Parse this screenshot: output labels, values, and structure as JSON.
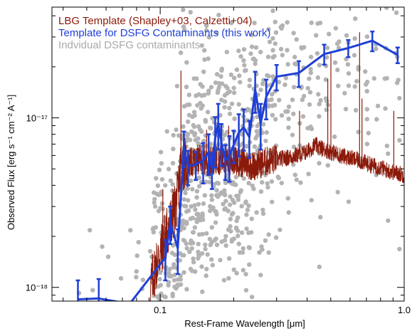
{
  "chart_data": {
    "type": "line",
    "xscale": "log",
    "yscale": "log",
    "xlim": [
      0.036,
      1.0
    ],
    "ylim": [
      8.3e-19,
      4.5e-17
    ],
    "xlabel": "Rest-Frame Wavelength [μm]",
    "ylabel": "Observed Flux [erg s⁻¹ cm⁻² A⁻¹]",
    "xticks": [
      {
        "value": 0.1,
        "label": "0.1"
      },
      {
        "value": 1.0,
        "label": "1.0"
      }
    ],
    "yticks": [
      {
        "value": 1e-18,
        "label": "10⁻¹⁸"
      },
      {
        "value": 1e-17,
        "label": "10⁻¹⁷"
      }
    ],
    "legend_position": "top-left",
    "legend": [
      {
        "label": "LBG Template (Shapley+03, Calzetti+04)",
        "color": "#8b1a0a"
      },
      {
        "label": "Template for DSFG Contaminants (this work)",
        "color": "#1f3fd6"
      },
      {
        "label": "Indvidual DSFG contaminants",
        "color": "#a9a9a9"
      }
    ],
    "series": [
      {
        "name": "Template for DSFG Contaminants (this work)",
        "color": "#1f3fd6",
        "x": [
          0.046,
          0.056,
          0.075,
          0.105,
          0.11,
          0.118,
          0.125,
          0.13,
          0.14,
          0.15,
          0.158,
          0.163,
          0.168,
          0.173,
          0.178,
          0.185,
          0.192,
          0.2,
          0.21,
          0.22,
          0.232,
          0.245,
          0.258,
          0.272,
          0.3,
          0.37,
          0.47,
          0.59,
          0.74,
          0.94
        ],
        "y": [
          8.5e-19,
          8.6e-19,
          8e-19,
          1.5e-18,
          2.4e-18,
          1.7e-18,
          6.7e-18,
          5.2e-18,
          5.3e-18,
          5.6e-18,
          6.3e-18,
          5e-18,
          7.6e-18,
          9.3e-18,
          7.2e-18,
          5.6e-18,
          6e-18,
          6.9e-18,
          8.2e-18,
          8.8e-18,
          7.7e-18,
          1.47e-17,
          9.3e-18,
          1.33e-17,
          1.75e-17,
          1.84e-17,
          2.38e-17,
          2.58e-17,
          2.85e-17,
          2.35e-17
        ],
        "yerr": [
          2.5e-19,
          2.6e-19,
          0,
          4e-19,
          6e-19,
          5e-19,
          1.6e-18,
          1.2e-18,
          1e-18,
          1.5e-18,
          1.7e-18,
          1.2e-18,
          2.5e-18,
          2.8e-18,
          2e-18,
          1.3e-18,
          1.8e-18,
          1.5e-18,
          2.3e-18,
          2.4e-18,
          1.9e-18,
          4e-18,
          2.8e-18,
          3.5e-18,
          3e-18,
          3.2e-18,
          3.2e-18,
          3e-18,
          3.8e-18,
          2.5e-18
        ]
      },
      {
        "name": "LBG Template (Shapley+03, Calzetti+04)",
        "color": "#8b1a0a",
        "x": [
          0.091,
          0.094,
          0.097,
          0.1,
          0.103,
          0.106,
          0.109,
          0.112,
          0.115,
          0.118,
          0.1216,
          0.125,
          0.13,
          0.14,
          0.15,
          0.16,
          0.17,
          0.18,
          0.19,
          0.2,
          0.22,
          0.24,
          0.26,
          0.28,
          0.3,
          0.33,
          0.36,
          0.4,
          0.43,
          0.46,
          0.5,
          0.55,
          0.6,
          0.65,
          0.7,
          0.75,
          0.8,
          0.85,
          0.9,
          0.95,
          1.0
        ],
        "y": [
          1e-18,
          1.2e-18,
          1.4e-18,
          1.6e-18,
          1.8e-18,
          2.1e-18,
          2.3e-18,
          2.6e-18,
          2.9e-18,
          3.5e-18,
          5.4e-18,
          5.4e-18,
          5.3e-18,
          5.6e-18,
          5.7e-18,
          5.6e-18,
          5.7e-18,
          5.6e-18,
          5.5e-18,
          5.6e-18,
          5.4e-18,
          5.2e-18,
          5.4e-18,
          5.6e-18,
          5.7e-18,
          5.8e-18,
          6e-18,
          6.3e-18,
          6.9e-18,
          6.6e-18,
          6.3e-18,
          6e-18,
          5.8e-18,
          5.6e-18,
          5.4e-18,
          5.2e-18,
          5.1e-18,
          4.9e-18,
          4.8e-18,
          4.7e-18,
          4.6e-18
        ]
      }
    ]
  }
}
